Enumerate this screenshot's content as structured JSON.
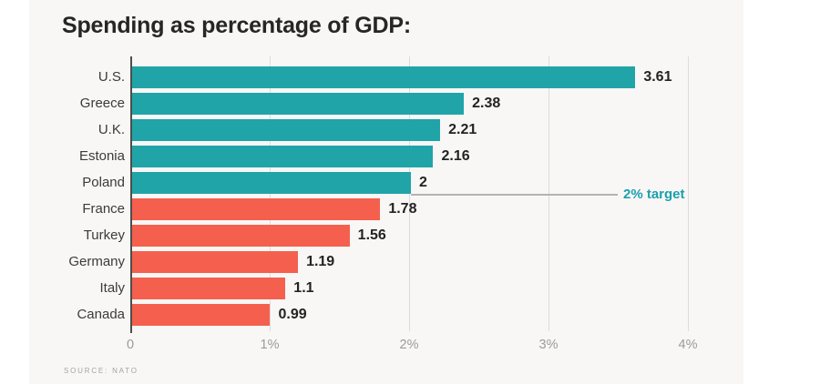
{
  "chart_data": {
    "type": "bar",
    "orientation": "horizontal",
    "title": "Spending as percentage of GDP:",
    "categories": [
      "U.S.",
      "Greece",
      "U.K.",
      "Estonia",
      "Poland",
      "France",
      "Turkey",
      "Germany",
      "Italy",
      "Canada"
    ],
    "values": [
      3.61,
      2.38,
      2.21,
      2.16,
      2,
      1.78,
      1.56,
      1.19,
      1.1,
      0.99
    ],
    "value_labels": [
      "3.61",
      "2.38",
      "2.21",
      "2.16",
      "2",
      "1.78",
      "1.56",
      "1.19",
      "1.1",
      "0.99"
    ],
    "xlim": [
      0,
      4
    ],
    "x_tick_values": [
      0,
      1,
      2,
      3,
      4
    ],
    "x_tick_labels": [
      "0",
      "1%",
      "2%",
      "3%",
      "4%"
    ],
    "target": {
      "value": 2,
      "label": "2% target"
    },
    "colors": {
      "at_or_above_target": "#20a4a8",
      "below_target": "#f4604d",
      "target_label": "#1ba0ac",
      "panel_background": "#f8f7f6",
      "gridline": "#dcdcdc",
      "axis_line": "#4d4d4d"
    },
    "grid": "vertical-only",
    "legend": "none",
    "source": "SOURCE: NATO"
  }
}
